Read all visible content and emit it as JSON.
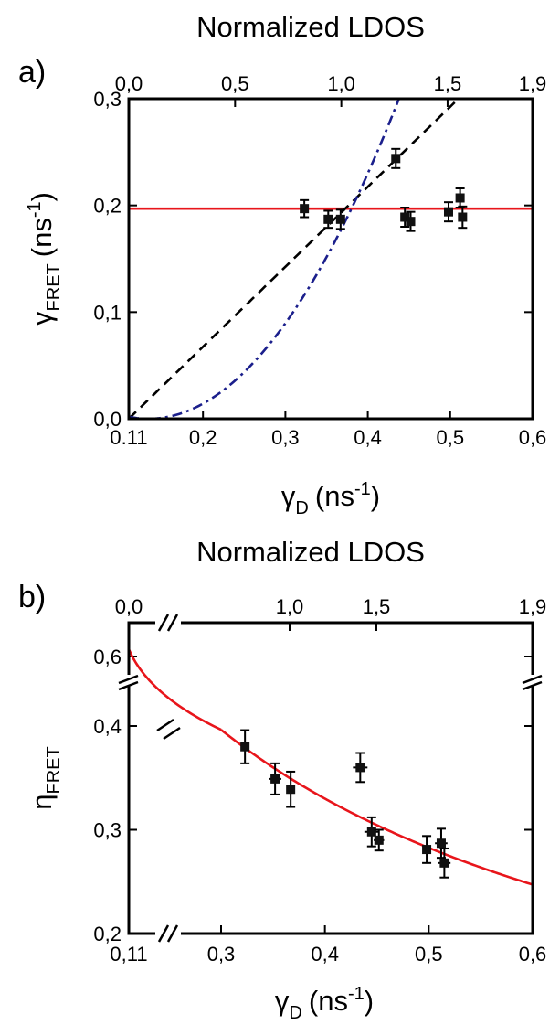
{
  "chart_data": [
    {
      "panel_label": "a)",
      "type": "scatter",
      "xlabel": {
        "base": "γ",
        "sub": "D",
        "unit": "(ns",
        "sup": "-1",
        "close": ")"
      },
      "ylabel": {
        "base": "γ",
        "sub": "FRET",
        "unit": "(ns",
        "sup": "-1",
        "close": ")"
      },
      "top_xlabel": "Normalized LDOS",
      "xlim": [
        0.11,
        0.6
      ],
      "ylim": [
        0.0,
        0.3
      ],
      "x_ticks": [
        0.11,
        0.2,
        0.3,
        0.4,
        0.5,
        0.6
      ],
      "x_tick_labels": [
        "0.11",
        "0,2",
        "0,3",
        "0,4",
        "0,5",
        "0,6"
      ],
      "y_ticks": [
        0.0,
        0.1,
        0.2,
        0.3
      ],
      "y_tick_labels": [
        "0,0",
        "0,1",
        "0,2",
        "0,3"
      ],
      "top_ticks": [
        0.0,
        0.5,
        1.0,
        1.5,
        1.9
      ],
      "top_tick_labels": [
        "0,0",
        "0,5",
        "1,0",
        "1,5",
        "1,9"
      ],
      "top_axis_map": {
        "ldos": [
          0.0,
          1.9
        ],
        "gamma_d": [
          0.11,
          0.6
        ]
      },
      "points": [
        {
          "x": 0.323,
          "y": 0.197,
          "yerr": 0.008,
          "xerr": 0.004
        },
        {
          "x": 0.352,
          "y": 0.187,
          "yerr": 0.008,
          "xerr": 0.004
        },
        {
          "x": 0.367,
          "y": 0.187,
          "yerr": 0.009,
          "xerr": 0.004
        },
        {
          "x": 0.434,
          "y": 0.244,
          "yerr": 0.009,
          "xerr": 0.004
        },
        {
          "x": 0.445,
          "y": 0.189,
          "yerr": 0.009,
          "xerr": 0.004
        },
        {
          "x": 0.452,
          "y": 0.185,
          "yerr": 0.009,
          "xerr": 0.004
        },
        {
          "x": 0.498,
          "y": 0.194,
          "yerr": 0.009,
          "xerr": 0.004
        },
        {
          "x": 0.512,
          "y": 0.207,
          "yerr": 0.009,
          "xerr": 0.004
        },
        {
          "x": 0.515,
          "y": 0.189,
          "yerr": 0.01,
          "xerr": 0.004
        }
      ],
      "fits": [
        {
          "kind": "constant",
          "value": 0.197,
          "color": "#e8151b",
          "dash": "solid"
        },
        {
          "kind": "linear",
          "x0": 0.11,
          "slope": 0.75,
          "color": "#000000",
          "dash": "dashed"
        },
        {
          "kind": "quadratic",
          "x0": 0.134,
          "coef": 3.25,
          "color": "#1b1f8c",
          "dash": "dashdot"
        }
      ],
      "grid": false,
      "legend": "none"
    },
    {
      "panel_label": "b)",
      "type": "scatter",
      "xlabel": {
        "base": "γ",
        "sub": "D",
        "unit": "(ns",
        "sup": "-1",
        "close": ")"
      },
      "ylabel": {
        "base": "η",
        "sub": "FRET"
      },
      "top_xlabel": "Normalized LDOS",
      "xlim": [
        0.11,
        0.6
      ],
      "ylim": [
        0.2,
        0.62
      ],
      "axis_breaks": {
        "x_between": [
          0.11,
          0.3
        ],
        "y_between": [
          0.45,
          0.6
        ]
      },
      "x_ticks": [
        0.11,
        0.3,
        0.4,
        0.5,
        0.6
      ],
      "x_tick_labels": [
        "0,11",
        "0,3",
        "0,4",
        "0,5",
        "0,6"
      ],
      "y_ticks": [
        0.2,
        0.3,
        0.4,
        0.6
      ],
      "y_tick_labels": [
        "0,2",
        "0,3",
        "0,4",
        "0,6"
      ],
      "top_ticks": [
        0.0,
        1.0,
        1.5,
        1.9
      ],
      "top_tick_labels": [
        "0,0",
        "1,0",
        "1,5",
        "1,9"
      ],
      "points": [
        {
          "x": 0.323,
          "y": 0.38,
          "yerr": 0.016,
          "xerr": 0.004
        },
        {
          "x": 0.352,
          "y": 0.349,
          "yerr": 0.015,
          "xerr": 0.006
        },
        {
          "x": 0.367,
          "y": 0.339,
          "yerr": 0.017,
          "xerr": 0.004
        },
        {
          "x": 0.434,
          "y": 0.36,
          "yerr": 0.014,
          "xerr": 0.007
        },
        {
          "x": 0.445,
          "y": 0.298,
          "yerr": 0.014,
          "xerr": 0.007
        },
        {
          "x": 0.452,
          "y": 0.29,
          "yerr": 0.01,
          "xerr": 0.005
        },
        {
          "x": 0.498,
          "y": 0.281,
          "yerr": 0.013,
          "xerr": 0.004
        },
        {
          "x": 0.512,
          "y": 0.287,
          "yerr": 0.014,
          "xerr": 0.006
        },
        {
          "x": 0.515,
          "y": 0.268,
          "yerr": 0.014,
          "xerr": 0.006
        }
      ],
      "fits": [
        {
          "kind": "rational",
          "formula": "0.197/(0.197+x)",
          "color": "#e8151b",
          "dash": "solid"
        }
      ],
      "grid": false,
      "legend": "none"
    }
  ]
}
